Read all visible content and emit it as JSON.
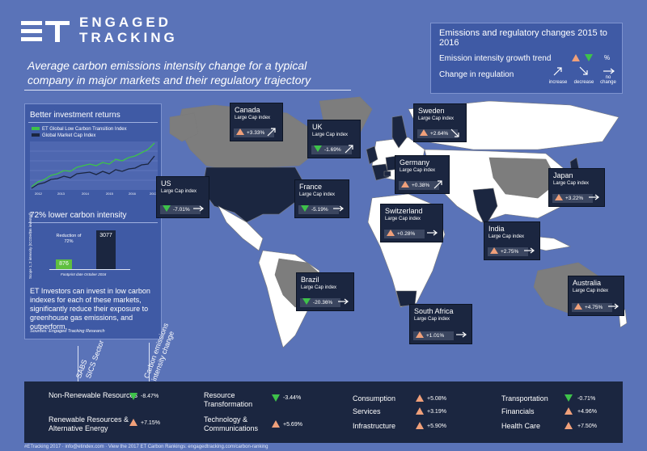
{
  "brand": {
    "line1": "ENGAGED",
    "line2": "TRACKING"
  },
  "headline": "Average carbon emissions intensity change for a typical company in major markets and their regulatory trajectory",
  "legend": {
    "title": "Emissions and regulatory changes 2015 to 2016",
    "growth_label": "Emission intensity growth trend",
    "percent_symbol": "%",
    "regulation_label": "Change in regulation",
    "increase": "increase",
    "decrease": "decrease",
    "no_change": "no change",
    "colors": {
      "up": "#f0a07a",
      "down": "#3ec24a"
    }
  },
  "sidebar": {
    "returns_title": "Better investment returns",
    "series1": "ET Global Low Carbon Transition Index",
    "series2": "Global Market Cap Index",
    "x_ticks": [
      "2012",
      "2013",
      "2014",
      "2015",
      "2016",
      "2017"
    ],
    "lower_title": "72% lower carbon intensity",
    "reduction_label": "Reduction of 72%",
    "bar_low": "876",
    "bar_high": "3077",
    "y_axis": "Scope 1, 2 intensity (tCO2e/$m invested)",
    "footprint": "Footprint date October 2016",
    "body": "ET Investors can invest in low carbon indexes for each of these markets, significantly reduce their exposure to greenhouse gas emissions, and outperform.",
    "source": "Sources: Engaged Tracking Research"
  },
  "cards": [
    {
      "name": "Canada",
      "sub": "Large Cap index",
      "value": "+3.33%",
      "trend": "up",
      "reg": "increase"
    },
    {
      "name": "UK",
      "sub": "Large Cap index",
      "value": "-1.69%",
      "trend": "down",
      "reg": "increase"
    },
    {
      "name": "Sweden",
      "sub": "Large Cap index",
      "value": "+2.64%",
      "trend": "up",
      "reg": "decrease"
    },
    {
      "name": "Germany",
      "sub": "Large Cap index",
      "value": "+0.38%",
      "trend": "up",
      "reg": "increase"
    },
    {
      "name": "Japan",
      "sub": "Large Cap index",
      "value": "+3.22%",
      "trend": "up",
      "reg": "no change"
    },
    {
      "name": "US",
      "sub": "Large Cap index",
      "value": "-7.01%",
      "trend": "down",
      "reg": "no change"
    },
    {
      "name": "France",
      "sub": "Large Cap index",
      "value": "-5.19%",
      "trend": "down",
      "reg": "no change"
    },
    {
      "name": "Switzerland",
      "sub": "Large Cap index",
      "value": "+0.28%",
      "trend": "up",
      "reg": "no change"
    },
    {
      "name": "India",
      "sub": "Large Cap index",
      "value": "+2.75%",
      "trend": "up",
      "reg": "no change"
    },
    {
      "name": "Brazil",
      "sub": "Large Cap index",
      "value": "-20.36%",
      "trend": "down",
      "reg": "no change"
    },
    {
      "name": "South Africa",
      "sub": "Large Cap index",
      "value": "+1.01%",
      "trend": "up",
      "reg": "no change"
    },
    {
      "name": "Australia",
      "sub": "Large Cap index",
      "value": "+4.75%",
      "trend": "up",
      "reg": "no change"
    }
  ],
  "axis_labels": {
    "sabs": "SABS",
    "sics": "SICS Sector",
    "carbon": "Carbon emissions intensity change"
  },
  "sectors": [
    {
      "name": "Non-Renewable Resources",
      "value": "-8.47%",
      "trend": "down"
    },
    {
      "name": "Renewable Resources & Alternative Energy",
      "value": "+7.15%",
      "trend": "up"
    },
    {
      "name": "Resource Transformation",
      "value": "-3.44%",
      "trend": "down"
    },
    {
      "name": "Technology & Communications",
      "value": "+5.69%",
      "trend": "up"
    },
    {
      "name": "Consumption",
      "value": "+5.08%",
      "trend": "up"
    },
    {
      "name": "Services",
      "value": "+3.19%",
      "trend": "up"
    },
    {
      "name": "Infrastructure",
      "value": "+5.90%",
      "trend": "up"
    },
    {
      "name": "Transportation",
      "value": "-0.71%",
      "trend": "down"
    },
    {
      "name": "Financials",
      "value": "+4.96%",
      "trend": "up"
    },
    {
      "name": "Health Care",
      "value": "+7.50%",
      "trend": "up"
    }
  ],
  "footer": "#ETracking 2017 · info@etindex.com · View the 2017 ET Carbon Rankings: engagedtracking.com/carbon-ranking"
}
